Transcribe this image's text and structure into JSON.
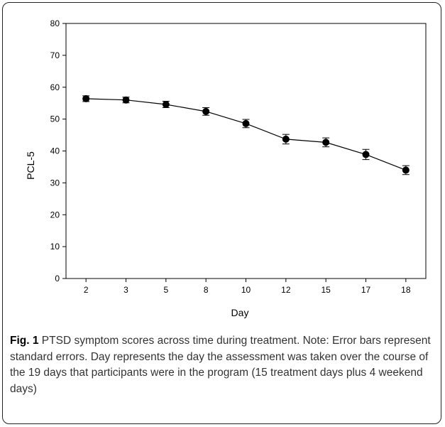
{
  "chart_data": {
    "type": "line",
    "x": [
      "2",
      "3",
      "5",
      "8",
      "10",
      "12",
      "15",
      "17",
      "18"
    ],
    "values": [
      56.4,
      56.0,
      54.6,
      52.4,
      48.6,
      43.7,
      42.7,
      38.9,
      34.0
    ],
    "errors": [
      0.9,
      0.9,
      1.0,
      1.2,
      1.3,
      1.5,
      1.4,
      1.6,
      1.4
    ],
    "xlabel": "Day",
    "ylabel": "PCL-5",
    "ylim": [
      0,
      80
    ],
    "yticks": [
      "0",
      "10",
      "20",
      "30",
      "40",
      "50",
      "60",
      "70",
      "80"
    ],
    "grid": false,
    "marker": "circle",
    "color": "#000000"
  },
  "caption": {
    "label": "Fig. 1",
    "text": "PTSD symptom scores across time during treatment. Note: Error bars represent standard errors. Day represents the day the assessment was taken over the course of the 19 days that participants were in the program (15 treatment days plus 4 weekend days)"
  }
}
